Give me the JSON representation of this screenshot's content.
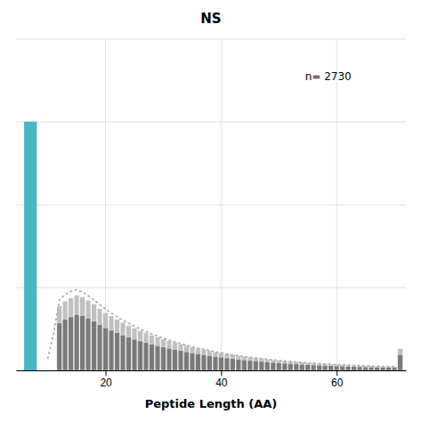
{
  "chart_data": {
    "type": "bar",
    "title": "NS",
    "x_label": "Peptide Length (AA)",
    "annotation": "n= 2730",
    "xlim": [
      4.5,
      72
    ],
    "ylim": [
      0,
      2730
    ],
    "xticks": [
      20,
      40,
      60
    ],
    "yticks": [
      0,
      682.5,
      1365,
      2047.5,
      2730
    ],
    "grid": true,
    "tick_labels": "x",
    "series": [
      {
        "type": "bar",
        "color": "#c0c0c0",
        "x": [
          12,
          13,
          14,
          15,
          16,
          17,
          18,
          19,
          20,
          21,
          22,
          23,
          24,
          25,
          26,
          27,
          28,
          29,
          30,
          31,
          32,
          33,
          34,
          35,
          36,
          37,
          38,
          39,
          40,
          41,
          42,
          43,
          44,
          45,
          46,
          47,
          48,
          49,
          50,
          51,
          52,
          53,
          54,
          55,
          56,
          57,
          58,
          59,
          60,
          61,
          62,
          63,
          64,
          65,
          66,
          67,
          68,
          69,
          70,
          71
        ],
        "values": [
          530,
          570,
          595,
          620,
          605,
          578,
          548,
          508,
          475,
          448,
          420,
          395,
          370,
          347,
          327,
          308,
          290,
          273,
          258,
          243,
          229,
          216,
          204,
          192,
          181,
          171,
          161,
          152,
          144,
          136,
          129,
          122,
          115,
          109,
          103,
          97,
          92,
          87,
          82,
          78,
          74,
          70,
          66,
          62,
          59,
          56,
          53,
          50,
          47,
          45,
          43,
          41,
          39,
          37,
          35,
          34,
          32,
          31,
          30,
          180
        ]
      },
      {
        "type": "bar",
        "color": "#7a7a7a",
        "x": [
          12,
          13,
          14,
          15,
          16,
          17,
          18,
          19,
          20,
          21,
          22,
          23,
          24,
          25,
          26,
          27,
          28,
          29,
          30,
          31,
          32,
          33,
          34,
          35,
          36,
          37,
          38,
          39,
          40,
          41,
          42,
          43,
          44,
          45,
          46,
          47,
          48,
          49,
          50,
          51,
          52,
          53,
          54,
          55,
          56,
          57,
          58,
          59,
          60,
          61,
          62,
          63,
          64,
          65,
          66,
          67,
          68,
          69,
          70,
          71
        ],
        "values": [
          390,
          420,
          440,
          460,
          450,
          430,
          405,
          375,
          350,
          330,
          310,
          290,
          272,
          256,
          242,
          228,
          215,
          203,
          192,
          181,
          171,
          162,
          153,
          144,
          136,
          128,
          121,
          114,
          108,
          102,
          96,
          91,
          86,
          81,
          77,
          73,
          69,
          65,
          61,
          58,
          55,
          52,
          49,
          46,
          44,
          42,
          40,
          38,
          36,
          34,
          32,
          31,
          29,
          28,
          27,
          26,
          25,
          24,
          23,
          130
        ]
      },
      {
        "type": "line",
        "color": "#b0b0b0",
        "line_style": "dotted",
        "x": [
          10,
          11,
          12,
          13,
          14,
          15,
          16,
          17,
          18,
          19,
          20,
          21,
          22,
          23,
          24,
          25,
          26,
          27,
          28,
          29,
          30,
          31,
          32,
          33,
          34,
          35,
          36,
          37,
          38,
          39,
          40,
          41,
          42,
          43,
          44,
          45,
          46,
          47,
          48,
          49,
          50,
          51,
          52,
          53,
          54,
          55,
          56,
          57,
          58,
          59,
          60,
          61,
          62,
          63,
          64,
          65,
          66,
          67,
          68,
          69,
          70
        ],
        "values": [
          100,
          300,
          580,
          625,
          650,
          665,
          645,
          615,
          580,
          542,
          505,
          472,
          442,
          414,
          388,
          363,
          341,
          320,
          300,
          282,
          265,
          249,
          234,
          220,
          207,
          195,
          183,
          173,
          163,
          153,
          144,
          136,
          128,
          121,
          114,
          108,
          102,
          96,
          91,
          86,
          81,
          77,
          73,
          69,
          65,
          62,
          59,
          56,
          53,
          50,
          47,
          45,
          43,
          41,
          39,
          37,
          35,
          34,
          32,
          31,
          30
        ]
      },
      {
        "type": "bar",
        "color": "#4db5c3",
        "x": [
          7
        ],
        "values": [
          2050
        ]
      }
    ]
  }
}
